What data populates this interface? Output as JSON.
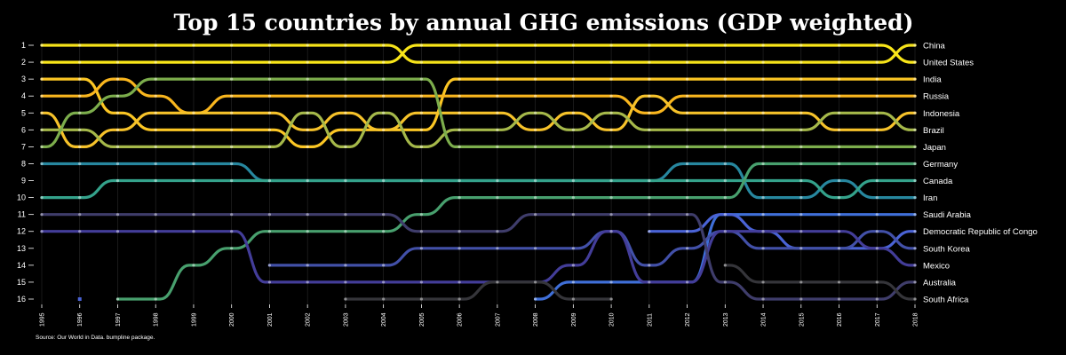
{
  "chart_data": {
    "type": "bump",
    "title": "Top 15 countries by annual GHG emissions (GDP weighted)",
    "caption": "Source: Our World in Data. bumpline package.",
    "years": [
      1995,
      1996,
      1997,
      1998,
      1999,
      2000,
      2001,
      2002,
      2003,
      2004,
      2005,
      2006,
      2007,
      2008,
      2009,
      2010,
      2011,
      2012,
      2013,
      2014,
      2015,
      2016,
      2017,
      2018
    ],
    "ranks": [
      1,
      2,
      3,
      4,
      5,
      6,
      7,
      8,
      9,
      10,
      11,
      12,
      13,
      14,
      15,
      16
    ],
    "series": [
      {
        "name": "China",
        "color": "#f5e21a",
        "ranks": [
          1,
          1,
          1,
          1,
          1,
          1,
          1,
          1,
          1,
          1,
          2,
          2,
          2,
          2,
          2,
          2,
          2,
          2,
          2,
          2,
          2,
          2,
          2,
          1
        ]
      },
      {
        "name": "United States",
        "color": "#f9e619",
        "ranks": [
          2,
          2,
          2,
          2,
          2,
          2,
          2,
          2,
          2,
          2,
          1,
          1,
          1,
          1,
          1,
          1,
          1,
          1,
          1,
          1,
          1,
          1,
          1,
          2
        ]
      },
      {
        "name": "India",
        "color": "#fbc624",
        "ranks": [
          3,
          3,
          5,
          6,
          6,
          6,
          6,
          7,
          6,
          6,
          6,
          3,
          3,
          3,
          3,
          3,
          3,
          3,
          3,
          3,
          3,
          3,
          3,
          3
        ]
      },
      {
        "name": "Russia",
        "color": "#f9b61e",
        "ranks": [
          4,
          4,
          3,
          4,
          5,
          4,
          4,
          4,
          4,
          4,
          4,
          4,
          4,
          4,
          4,
          4,
          5,
          4,
          4,
          4,
          4,
          4,
          4,
          4
        ]
      },
      {
        "name": "Indonesia",
        "color": "#f6c22a",
        "ranks": [
          5,
          7,
          6,
          5,
          5,
          5,
          5,
          6,
          5,
          6,
          5,
          5,
          5,
          6,
          5,
          6,
          4,
          5,
          5,
          5,
          5,
          6,
          6,
          5
        ]
      },
      {
        "name": "Brazil",
        "color": "#a5b84a",
        "ranks": [
          6,
          6,
          7,
          7,
          7,
          7,
          7,
          5,
          7,
          5,
          7,
          6,
          6,
          5,
          6,
          5,
          6,
          6,
          6,
          6,
          6,
          5,
          5,
          6
        ]
      },
      {
        "name": "Japan",
        "color": "#7cad4c",
        "ranks": [
          7,
          5,
          4,
          3,
          3,
          3,
          3,
          3,
          3,
          3,
          3,
          7,
          7,
          7,
          7,
          7,
          7,
          7,
          7,
          7,
          7,
          7,
          7,
          7
        ]
      },
      {
        "name": "Iran",
        "color": "#27879f",
        "ranks": [
          8,
          8,
          8,
          8,
          8,
          8,
          9,
          9,
          9,
          9,
          9,
          9,
          9,
          9,
          9,
          9,
          9,
          8,
          8,
          10,
          10,
          9,
          10,
          10
        ]
      },
      {
        "name": "Canada",
        "color": "#34a28b",
        "ranks": [
          10,
          10,
          9,
          9,
          9,
          9,
          9,
          9,
          9,
          9,
          9,
          9,
          9,
          9,
          9,
          9,
          9,
          9,
          9,
          9,
          9,
          10,
          9,
          9
        ]
      },
      {
        "name": "Germany",
        "color": "#48a06e",
        "ranks": [
          null,
          null,
          16,
          16,
          14,
          13,
          12,
          12,
          12,
          12,
          11,
          10,
          10,
          10,
          10,
          10,
          10,
          10,
          10,
          8,
          8,
          8,
          8,
          8
        ]
      },
      {
        "name": "Saudi Arabia",
        "color": "#3f6fd8",
        "ranks": [
          null,
          null,
          null,
          null,
          null,
          null,
          null,
          null,
          null,
          null,
          null,
          null,
          null,
          16,
          15,
          15,
          15,
          15,
          11,
          11,
          11,
          11,
          11,
          11
        ]
      },
      {
        "name": "Democratic Republic of Congo",
        "color": "#4a63d6",
        "ranks": [
          null,
          null,
          null,
          null,
          null,
          null,
          null,
          null,
          null,
          null,
          null,
          null,
          null,
          null,
          null,
          null,
          12,
          12,
          11,
          12,
          13,
          13,
          13,
          12
        ]
      },
      {
        "name": "South Korea",
        "color": "#4250a8",
        "ranks": [
          null,
          null,
          null,
          null,
          null,
          null,
          14,
          14,
          14,
          14,
          13,
          13,
          13,
          13,
          13,
          12,
          14,
          13,
          12,
          13,
          13,
          13,
          12,
          13
        ]
      },
      {
        "name": "Mexico",
        "color": "#433d99",
        "ranks": [
          12,
          12,
          12,
          12,
          12,
          12,
          15,
          15,
          15,
          15,
          15,
          15,
          15,
          15,
          14,
          12,
          15,
          15,
          12,
          12,
          12,
          12,
          13,
          14
        ]
      },
      {
        "name": "Australia",
        "color": "#3f3d6b",
        "ranks": [
          11,
          11,
          11,
          11,
          11,
          11,
          11,
          11,
          11,
          11,
          12,
          12,
          12,
          11,
          11,
          11,
          11,
          11,
          15,
          16,
          16,
          16,
          16,
          15
        ]
      },
      {
        "name": "South Africa",
        "color": "#35353a",
        "ranks": [
          null,
          null,
          null,
          null,
          null,
          null,
          null,
          null,
          16,
          16,
          16,
          16,
          15,
          15,
          16,
          16,
          null,
          null,
          14,
          15,
          15,
          15,
          15,
          16
        ]
      }
    ],
    "markers": [
      {
        "year": 1996,
        "rank": 16,
        "color": "#4a63d6"
      }
    ]
  }
}
